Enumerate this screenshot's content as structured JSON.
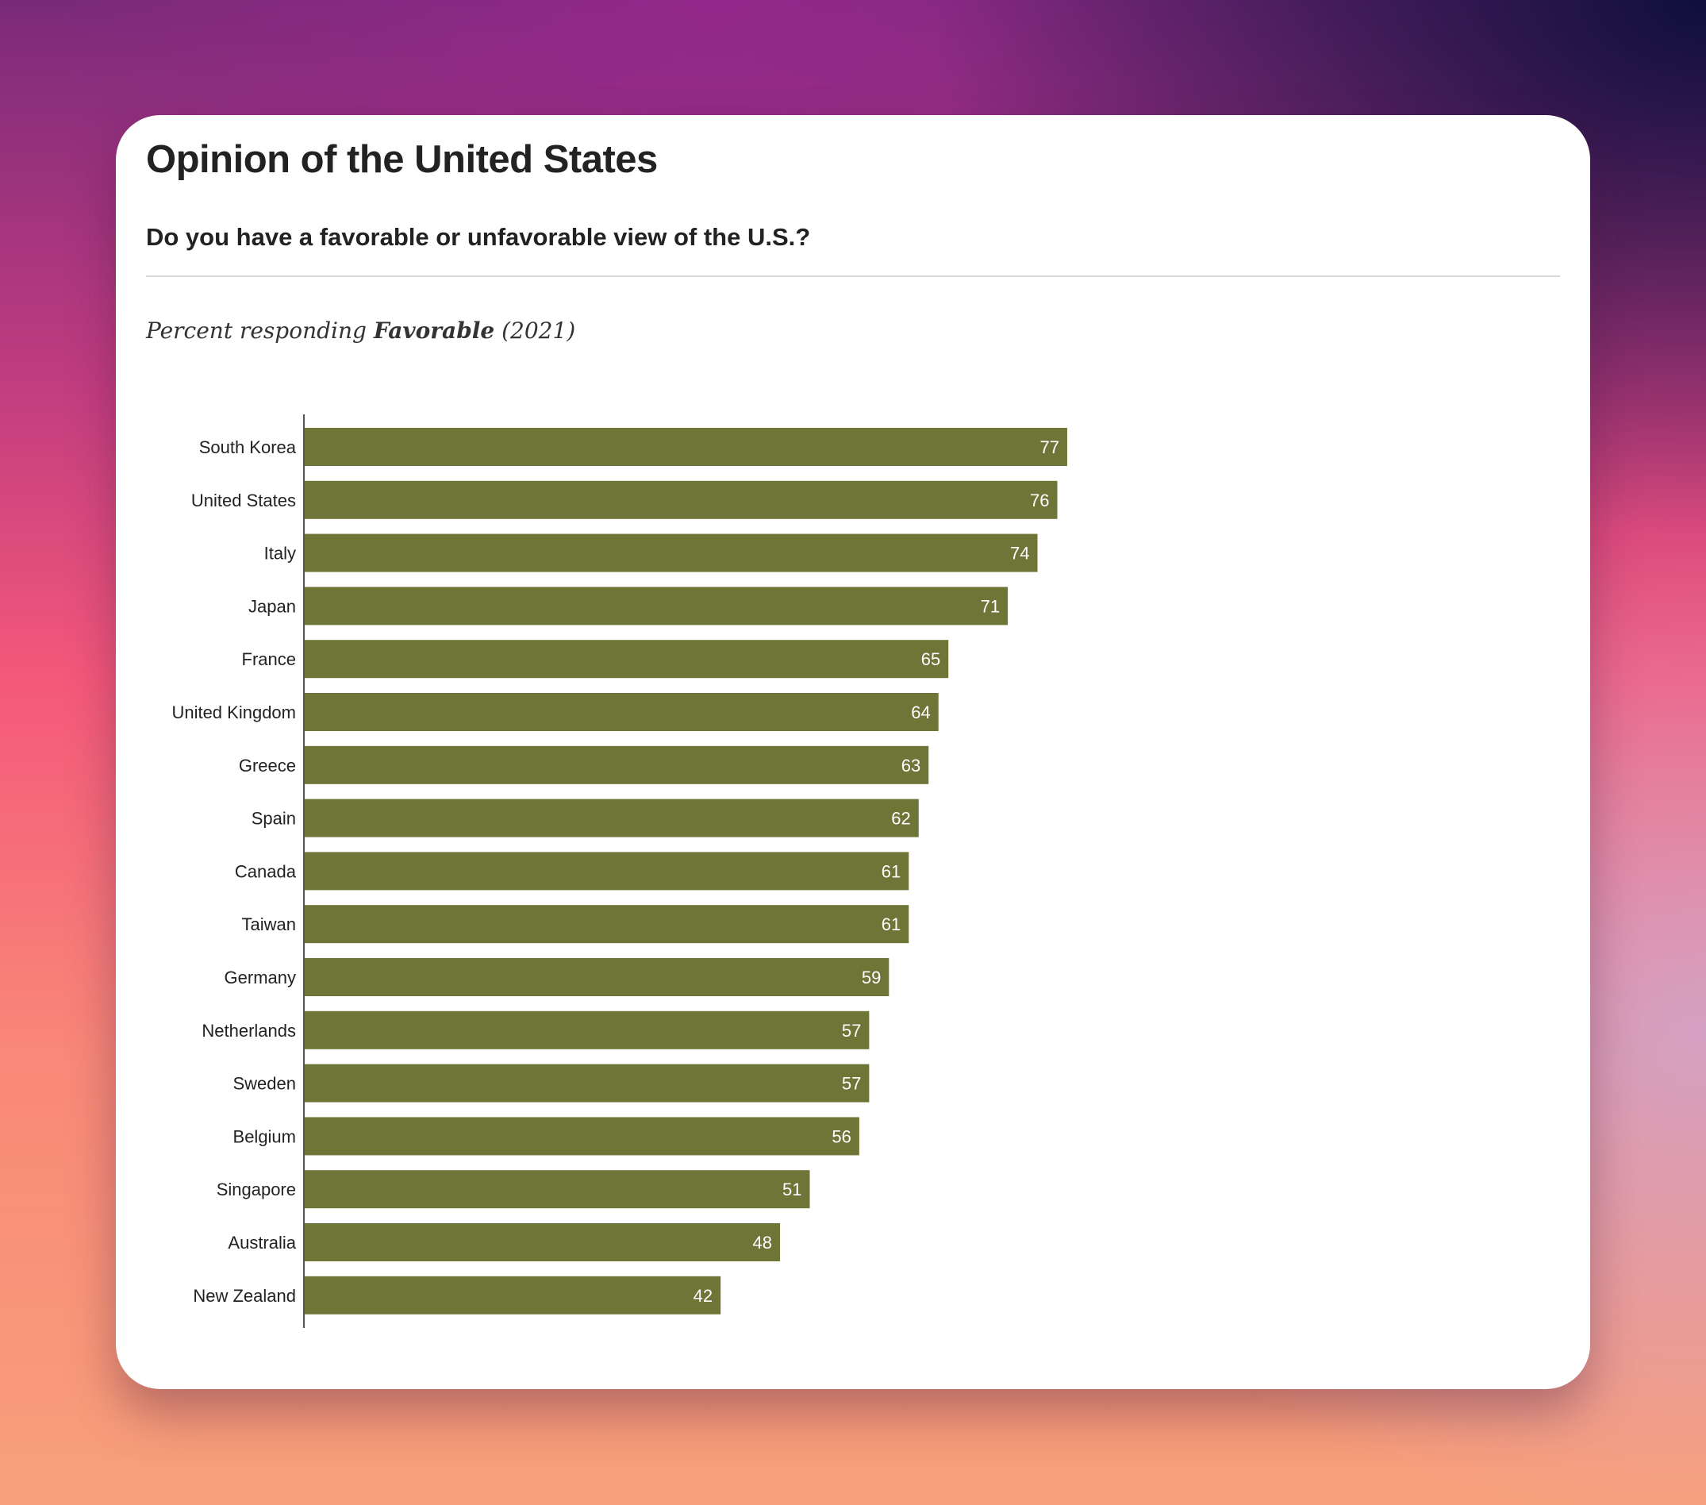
{
  "chart_data": {
    "type": "bar",
    "orientation": "horizontal",
    "title": "Opinion of the United States",
    "subtitle": "Do you have a favorable or unfavorable view of the U.S.?",
    "note": {
      "prefix": "Percent responding",
      "emphasis": "Favorable",
      "suffix": "(2021)"
    },
    "categories": [
      "South Korea",
      "United States",
      "Italy",
      "Japan",
      "France",
      "United Kingdom",
      "Greece",
      "Spain",
      "Canada",
      "Taiwan",
      "Germany",
      "Netherlands",
      "Sweden",
      "Belgium",
      "Singapore",
      "Australia",
      "New Zealand"
    ],
    "values": [
      77,
      76,
      74,
      71,
      65,
      64,
      63,
      62,
      61,
      61,
      59,
      57,
      57,
      56,
      51,
      48,
      42
    ],
    "xlim": [
      0,
      100
    ],
    "grid": false,
    "data_labels": "inside-end",
    "bar_color": "#6e7537"
  }
}
